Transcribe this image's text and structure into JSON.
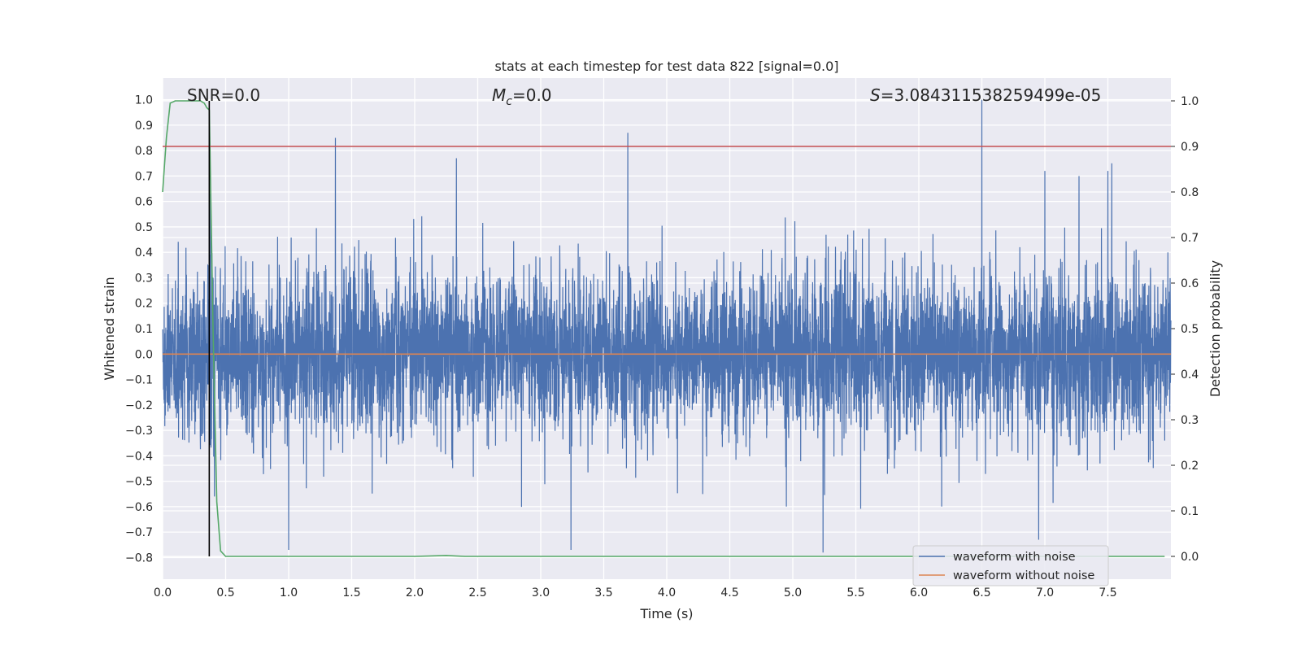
{
  "chart_data": {
    "type": "line",
    "title": "stats at each timestep for test data 822 [signal=0.0]",
    "xlabel": "Time (s)",
    "ylabel": "Whitened strain",
    "ylabel_right": "Detection probability",
    "xlim": [
      0.0,
      8.0
    ],
    "ylim": [
      -0.885,
      1.085
    ],
    "ylim_right": [
      -0.05,
      1.05
    ],
    "xticks": [
      0.0,
      0.5,
      1.0,
      1.5,
      2.0,
      2.5,
      3.0,
      3.5,
      4.0,
      4.5,
      5.0,
      5.5,
      6.0,
      6.5,
      7.0,
      7.5
    ],
    "xtick_labels": [
      "0.0",
      "0.5",
      "1.0",
      "1.5",
      "2.0",
      "2.5",
      "3.0",
      "3.5",
      "4.0",
      "4.5",
      "5.0",
      "5.5",
      "6.0",
      "6.5",
      "7.0",
      "7.5"
    ],
    "yticks": [
      1.0,
      0.9,
      0.8,
      0.7,
      0.6,
      0.5,
      0.4,
      0.3,
      0.2,
      0.1,
      0.0,
      -0.1,
      -0.2,
      -0.3,
      -0.4,
      -0.5,
      -0.6,
      -0.7,
      -0.8
    ],
    "ytick_labels": [
      "1.0",
      "0.9",
      "0.8",
      "0.7",
      "0.6",
      "0.5",
      "0.4",
      "0.3",
      "0.2",
      "0.1",
      "0.0",
      "−0.1",
      "−0.2",
      "−0.3",
      "−0.4",
      "−0.5",
      "−0.6",
      "−0.7",
      "−0.8"
    ],
    "yticks_right": [
      1.0,
      0.9,
      0.8,
      0.7,
      0.6,
      0.5,
      0.4,
      0.3,
      0.2,
      0.1,
      0.0
    ],
    "ytick_labels_right": [
      "1.0",
      "0.9",
      "0.8",
      "0.7",
      "0.6",
      "0.5",
      "0.4",
      "0.3",
      "0.2",
      "0.1",
      "0.0"
    ],
    "annotations": {
      "snr": "SNR=0.0",
      "mc_symbol": "M",
      "mc_sub": "c",
      "mc_value": "=0.0",
      "s_symbol": "S",
      "s_value": "=3.084311538259499e-05"
    },
    "legend": {
      "position": "lower right",
      "entries": [
        "waveform with noise",
        "waveform without noise"
      ]
    },
    "series": [
      {
        "name": "waveform with noise",
        "axis": "left",
        "color": "#4c72b0",
        "kind": "noise",
        "sigma": 0.16,
        "spikes": [
          {
            "x": 0.38,
            "y": 0.63
          },
          {
            "x": 0.41,
            "y": -0.56
          },
          {
            "x": 1.37,
            "y": 0.85
          },
          {
            "x": 1.0,
            "y": -0.77
          },
          {
            "x": 2.33,
            "y": 0.77
          },
          {
            "x": 3.69,
            "y": 0.87
          },
          {
            "x": 3.24,
            "y": -0.77
          },
          {
            "x": 5.24,
            "y": -0.78
          },
          {
            "x": 6.5,
            "y": 1.0
          },
          {
            "x": 7.0,
            "y": 0.72
          },
          {
            "x": 7.27,
            "y": 0.7
          },
          {
            "x": 7.5,
            "y": 0.72
          },
          {
            "x": 7.53,
            "y": 0.75
          },
          {
            "x": 6.95,
            "y": -0.73
          }
        ]
      },
      {
        "name": "waveform without noise",
        "axis": "left",
        "color": "#dd8452",
        "x": [
          0.0,
          8.0
        ],
        "y": [
          0.0,
          0.0
        ]
      },
      {
        "name": "detection probability",
        "axis": "right",
        "color": "#55a868",
        "x": [
          0.0,
          0.03,
          0.06,
          0.1,
          0.15,
          0.2,
          0.25,
          0.3,
          0.33,
          0.35,
          0.37,
          0.4,
          0.43,
          0.46,
          0.5,
          1.0,
          2.0,
          2.25,
          2.4,
          3.0,
          4.0,
          5.0,
          6.0,
          7.0,
          7.95
        ],
        "y": [
          0.8,
          0.92,
          0.995,
          1.0,
          1.0,
          1.0,
          1.0,
          1.0,
          0.995,
          0.985,
          0.98,
          0.5,
          0.12,
          0.012,
          0.0,
          0.0,
          0.0,
          0.002,
          0.0,
          0.0,
          0.0,
          0.0,
          0.0,
          0.0,
          0.0
        ]
      },
      {
        "name": "threshold",
        "axis": "right",
        "color": "#c44e52",
        "x": [
          0.0,
          8.0
        ],
        "y": [
          0.9,
          0.9
        ]
      },
      {
        "name": "detection marker",
        "axis": "right",
        "color": "#000000",
        "kind": "vline",
        "x": 0.37,
        "y_range": [
          0.0,
          1.0
        ]
      }
    ]
  }
}
